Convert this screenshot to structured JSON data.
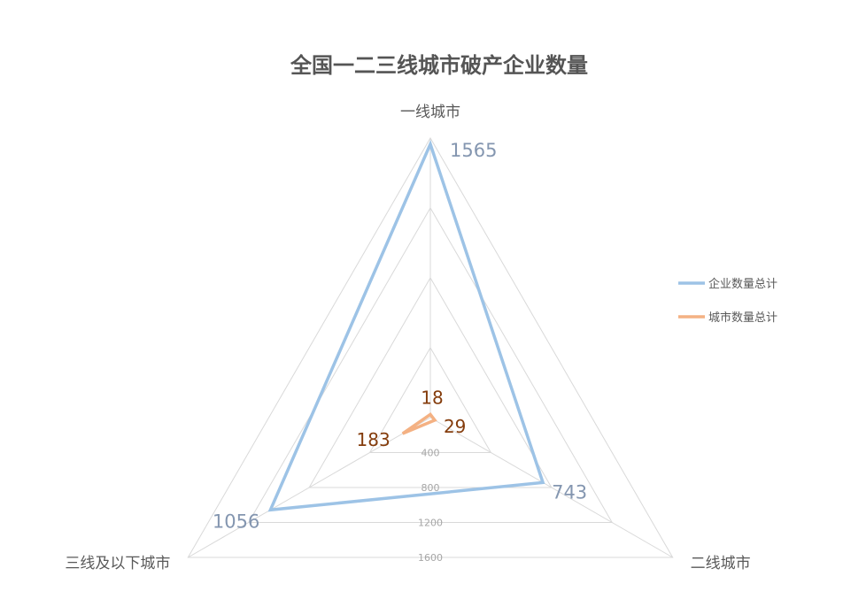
{
  "chart_data": {
    "type": "radar",
    "title": "全国一二三线城市破产企业数量",
    "categories": [
      "一线城市",
      "二线城市",
      "三线及以下城市"
    ],
    "series": [
      {
        "name": "企业数量总计",
        "values": [
          1565,
          743,
          1056
        ],
        "color": "#9dc3e6",
        "label_color": "#8496b0"
      },
      {
        "name": "城市数量总计",
        "values": [
          18,
          29,
          183
        ],
        "color": "#f4b183",
        "label_color": "#843c0c"
      }
    ],
    "ticks": [
      400,
      800,
      1200,
      1600
    ],
    "ylim": [
      0,
      1600
    ],
    "grid": true,
    "legend_position": "right"
  }
}
